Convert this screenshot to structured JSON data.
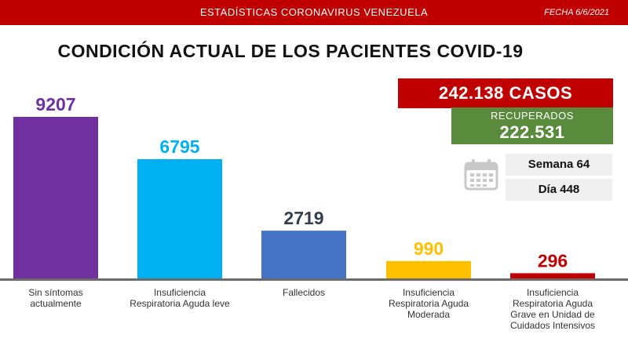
{
  "header": {
    "title": "ESTADÍSTICAS CORONAVIRUS VENEZUELA",
    "date": "FECHA 6/6/2021"
  },
  "main_title": "CONDICIÓN ACTUAL DE LOS PACIENTES COVID-19",
  "summary": {
    "cases": "242.138 CASOS",
    "recovered_label": "RECUPERADOS",
    "recovered_value": "222.531",
    "week": "Semana 64",
    "day": "Día 448"
  },
  "icons": {
    "calendar": "calendar-icon"
  },
  "colors": {
    "header_bg": "#c00000",
    "cases_bg": "#c00000",
    "recovered_bg": "#5a8a3c",
    "axis_band": "#6b6b6b"
  },
  "chart_data": {
    "type": "bar",
    "categories": [
      [
        "Sin síntomas",
        "actualmente"
      ],
      [
        "Insuficiencia",
        "Respiratoria Aguda leve"
      ],
      [
        "Fallecidos"
      ],
      [
        "Insuficiencia",
        "Respiratoria Aguda",
        "Moderada"
      ],
      [
        "Insuficiencia",
        "Respiratoria Aguda",
        "Grave en Unidad de",
        "Cuidados Intensivos"
      ]
    ],
    "values": [
      9207,
      6795,
      2719,
      990,
      296
    ],
    "labels": [
      "9207",
      "6795",
      "2719",
      "990",
      "296"
    ],
    "bar_colors": [
      "#7030a0",
      "#00b0f0",
      "#4472c4",
      "#ffc000",
      "#c00000"
    ],
    "label_colors": [
      "#7030a0",
      "#00b0f0",
      "#333f50",
      "#ffc000",
      "#c00000"
    ],
    "ylim": [
      0,
      9207
    ]
  }
}
